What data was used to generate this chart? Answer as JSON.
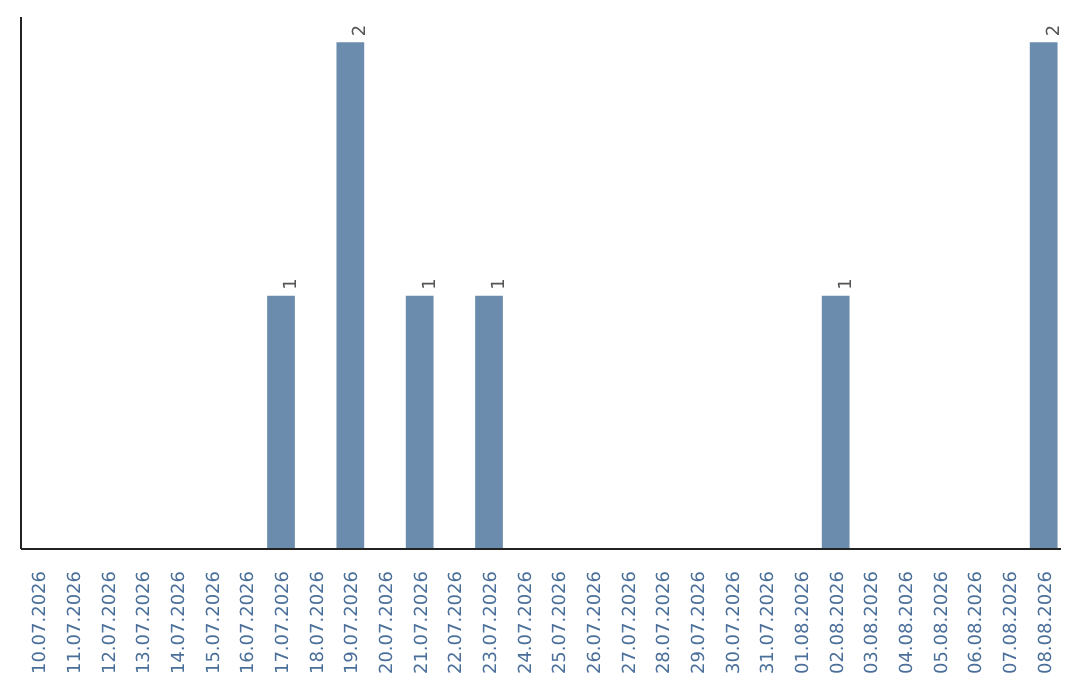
{
  "chart_data": {
    "type": "bar",
    "categories": [
      "10.07.2026",
      "11.07.2026",
      "12.07.2026",
      "13.07.2026",
      "14.07.2026",
      "15.07.2026",
      "16.07.2026",
      "17.07.2026",
      "18.07.2026",
      "19.07.2026",
      "20.07.2026",
      "21.07.2026",
      "22.07.2026",
      "23.07.2026",
      "24.07.2026",
      "25.07.2026",
      "26.07.2026",
      "27.07.2026",
      "28.07.2026",
      "29.07.2026",
      "30.07.2026",
      "31.07.2026",
      "01.08.2026",
      "02.08.2026",
      "03.08.2026",
      "04.08.2026",
      "05.08.2026",
      "06.08.2026",
      "07.08.2026",
      "08.08.2026"
    ],
    "values": [
      0,
      0,
      0,
      0,
      0,
      0,
      0,
      1,
      0,
      2,
      0,
      1,
      0,
      1,
      0,
      0,
      0,
      0,
      0,
      0,
      0,
      0,
      0,
      1,
      0,
      0,
      0,
      0,
      0,
      2
    ],
    "value_labels": [
      null,
      null,
      null,
      null,
      null,
      null,
      null,
      "1",
      null,
      "2",
      null,
      "1",
      null,
      "1",
      null,
      null,
      null,
      null,
      null,
      null,
      null,
      null,
      null,
      "1",
      null,
      null,
      null,
      null,
      null,
      "2"
    ],
    "color": "#6b8cad",
    "tick_labels": "x"
  }
}
